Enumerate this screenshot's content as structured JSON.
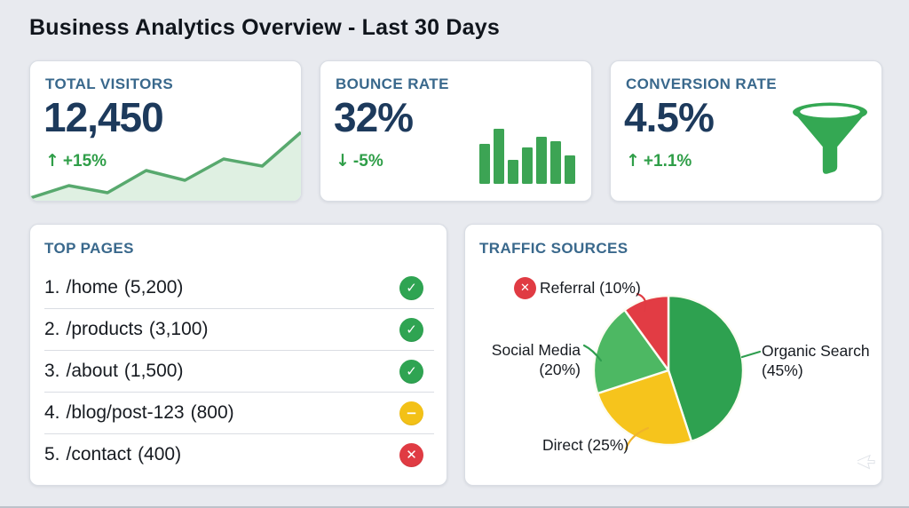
{
  "page": {
    "title": "Business Analytics Overview - Last 30 Days"
  },
  "colors": {
    "page_bg": "#e8eaef",
    "card_bg": "#ffffff",
    "header_blue": "#39688c",
    "value_navy": "#1d3a5c",
    "trend_green": "#2f9e48"
  },
  "kpi_cards": [
    {
      "label": "TOTAL VISITORS",
      "value": "12,450",
      "arrow": "↑",
      "trend": "+15%"
    },
    {
      "label": "BOUNCE RATE",
      "value": "32%",
      "arrow": "↓",
      "trend": "-5%"
    },
    {
      "label": "CONVERSION RATE",
      "value": "4.5%",
      "arrow": "↑",
      "trend": "+1.1%"
    }
  ],
  "top_pages": {
    "title": "TOP PAGES",
    "items": [
      {
        "rank": "1.",
        "path": "/home",
        "visits": "(5,200)",
        "status": "good",
        "glyph": "✓"
      },
      {
        "rank": "2.",
        "path": "/products",
        "visits": "(3,100)",
        "status": "good",
        "glyph": "✓"
      },
      {
        "rank": "3.",
        "path": "/about",
        "visits": "(1,500)",
        "status": "good",
        "glyph": "✓"
      },
      {
        "rank": "4.",
        "path": "/blog/post-123",
        "visits": "(800)",
        "status": "warn",
        "glyph": "−"
      },
      {
        "rank": "5.",
        "path": "/contact",
        "visits": "(400)",
        "status": "bad",
        "glyph": "✕"
      }
    ]
  },
  "status_colors": {
    "good": "#2fa452",
    "warn": "#f3c117",
    "bad": "#e03b43"
  },
  "traffic_sources": {
    "title": "TRAFFIC SOURCES",
    "labels": {
      "referral": {
        "text": "Referral (10%)",
        "icon_glyph": "✕"
      },
      "social": {
        "line1": "Social Media",
        "line2": "(20%)"
      },
      "organic": {
        "line1": "Organic Search",
        "line2": "(45%)"
      },
      "direct": {
        "text": "Direct (25%)"
      }
    }
  },
  "chart_data": [
    {
      "type": "area",
      "name": "visitors-sparkline",
      "title": "Total visitors 30-day trend (unlabeled sparkline)",
      "values": [
        3,
        17,
        9,
        34,
        23,
        47,
        39,
        77
      ],
      "unit": "relative height",
      "line_color": "#58a96e",
      "fill_color": "#dff0e2"
    },
    {
      "type": "bar",
      "name": "bounce-bars",
      "title": "Bounce rate mini bar chart (unlabeled)",
      "values": [
        45,
        62,
        27,
        41,
        53,
        48,
        32
      ],
      "unit": "relative height",
      "color": "#3ca454"
    },
    {
      "type": "pie",
      "name": "traffic-pie",
      "title": "Traffic Sources",
      "labels": [
        "Organic Search",
        "Direct",
        "Social Media",
        "Referral"
      ],
      "values": [
        45,
        25,
        20,
        10
      ],
      "colors": [
        "#2ea150",
        "#f6c41c",
        "#4db863",
        "#e23c44"
      ],
      "start_angle": "12 o'clock",
      "direction": "clockwise",
      "separator_color": "#fcfcf2"
    }
  ]
}
